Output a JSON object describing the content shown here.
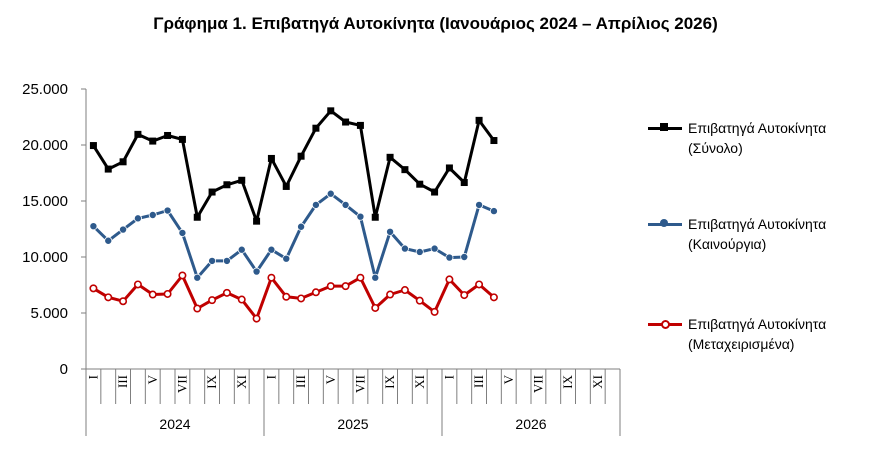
{
  "chart_data": {
    "type": "line",
    "title": "Γράφημα 1. Επιβατηγά Αυτοκίνητα (Ιανουάριος 2024 – Απρίλιος 2026)",
    "ylim": [
      0,
      25000
    ],
    "yticks": [
      "0",
      "5.000",
      "10.000",
      "15.000",
      "20.000",
      "25.000"
    ],
    "ytick_values": [
      0,
      5000,
      10000,
      15000,
      20000,
      25000
    ],
    "grid": false,
    "legend_position": "right",
    "month_labels": [
      "I",
      "III",
      "V",
      "VII",
      "IX",
      "XI"
    ],
    "years": [
      "2024",
      "2025",
      "2026"
    ],
    "months_per_year": 12,
    "series": [
      {
        "name": "Επιβατηγά Αυτοκίνητα",
        "name_line2": "(Σύνολο)",
        "color": "#000000",
        "marker": "square",
        "values": [
          19950,
          17850,
          18500,
          20950,
          20350,
          20850,
          20500,
          13550,
          15800,
          16450,
          16850,
          13200,
          18800,
          16300,
          19000,
          21500,
          23050,
          22050,
          21750,
          13550,
          18900,
          17800,
          16500,
          15800,
          17950,
          16650,
          22200,
          20400
        ]
      },
      {
        "name": "Επιβατηγά Αυτοκίνητα",
        "name_line2": "(Καινούργια)",
        "color": "#2e5a8c",
        "marker": "circle",
        "values": [
          12750,
          11450,
          12450,
          13450,
          13750,
          14150,
          12150,
          8150,
          9650,
          9650,
          10650,
          8700,
          10650,
          9850,
          12700,
          14650,
          15650,
          14650,
          13600,
          8150,
          12250,
          10750,
          10450,
          10750,
          9950,
          10000,
          14650,
          14100
        ]
      },
      {
        "name": "Επιβατηγά Αυτοκίνητα",
        "name_line2": "(Μεταχειρισμένα)",
        "color": "#c00000",
        "marker": "circle-open",
        "values": [
          7200,
          6400,
          6050,
          7550,
          6650,
          6700,
          8350,
          5400,
          6150,
          6800,
          6200,
          4500,
          8150,
          6450,
          6300,
          6850,
          7400,
          7400,
          8150,
          5450,
          6650,
          7050,
          6100,
          5100,
          8000,
          6600,
          7550,
          6400
        ]
      }
    ]
  }
}
